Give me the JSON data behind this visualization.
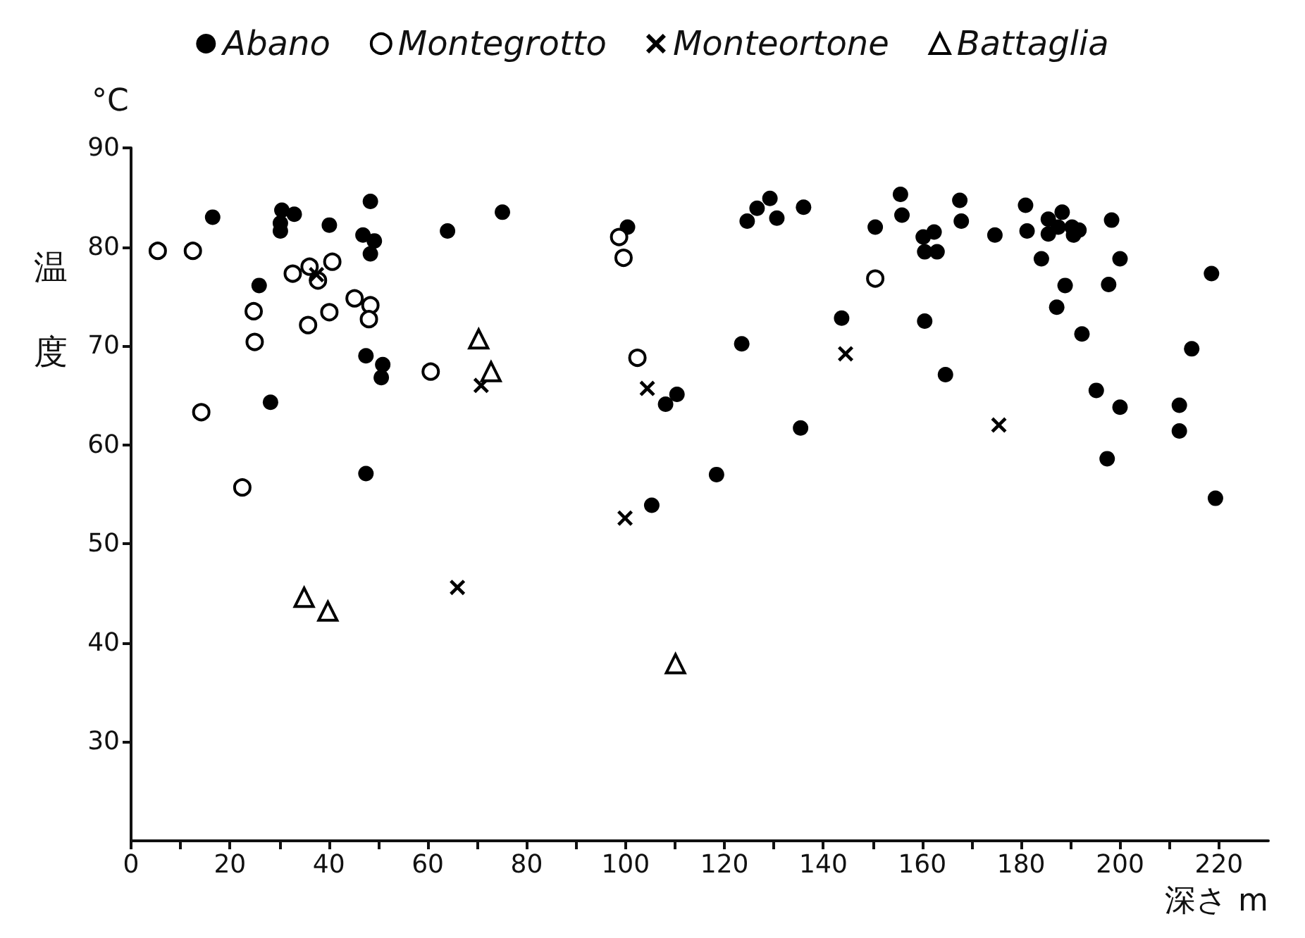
{
  "chart_data": {
    "type": "scatter",
    "xlabel": "深さ m",
    "ylabel": "温度",
    "annotations": [
      "°C"
    ],
    "xlim": [
      0,
      230
    ],
    "ylim": [
      20,
      90
    ],
    "xticks": [
      0,
      {
        "value": 10,
        "label": null
      },
      20,
      {
        "value": 30,
        "label": null
      },
      40,
      {
        "value": 50,
        "label": null
      },
      60,
      {
        "value": 70,
        "label": null
      },
      80,
      {
        "value": 90,
        "label": null
      },
      100,
      {
        "value": 110,
        "label": null
      },
      120,
      {
        "value": 130,
        "label": null
      },
      140,
      {
        "value": 150,
        "label": null
      },
      160,
      {
        "value": 170,
        "label": null
      },
      180,
      {
        "value": 190,
        "label": null
      },
      200,
      {
        "value": 210,
        "label": null
      },
      220
    ],
    "yticks": [
      30,
      40,
      50,
      60,
      70,
      80,
      90
    ],
    "grid": false,
    "legend": "top",
    "series": [
      {
        "name": "Abano",
        "color": "#000000",
        "marker": "circle",
        "x": [
          16.5,
          30.5,
          33,
          30.2,
          30.2,
          40.1,
          48.4,
          46.9,
          49.2,
          48.4,
          25.9,
          64,
          75.1,
          47.5,
          50.9,
          50.6,
          28.2,
          47.5,
          100.4,
          124.6,
          126.6,
          129.2,
          130.6,
          136,
          155.6,
          155.9,
          150.5,
          143.7,
          123.5,
          110.4,
          108.1,
          135.4,
          118.4,
          105.3,
          167.6,
          167.9,
          160.2,
          162.4,
          160.5,
          163,
          174.7,
          180.9,
          181.2,
          185.5,
          188.3,
          185.5,
          190.3,
          191.7,
          190.6,
          187.5,
          198.3,
          184.1,
          200,
          188.9,
          197.7,
          187.2,
          218.5,
          160.5,
          192.3,
          214.5,
          164.7,
          195.2,
          200,
          212,
          212,
          197.4,
          219.3
        ],
        "values": [
          83,
          83.7,
          83.3,
          82.4,
          81.6,
          82.2,
          84.6,
          81.2,
          80.6,
          79.3,
          76.1,
          81.6,
          83.5,
          69,
          68.1,
          66.8,
          64.3,
          57.1,
          82,
          82.6,
          83.9,
          84.9,
          82.9,
          84,
          85.3,
          83.2,
          82,
          72.8,
          70.2,
          65.1,
          64.1,
          61.7,
          57,
          53.9,
          84.7,
          82.6,
          81,
          81.5,
          79.5,
          79.5,
          81.2,
          84.2,
          81.6,
          82.8,
          83.5,
          81.3,
          82,
          81.7,
          81.2,
          82,
          82.7,
          78.8,
          78.8,
          76.1,
          76.2,
          73.9,
          77.3,
          72.5,
          71.2,
          69.7,
          67.1,
          65.5,
          63.8,
          64,
          61.4,
          58.6,
          54.6
        ]
      },
      {
        "name": "Montegrotto",
        "color": "#ffffff",
        "marker": "circle",
        "x": [
          5.4,
          12.5,
          32.7,
          36.1,
          37.8,
          40.7,
          45.2,
          48.4,
          48.1,
          40.1,
          35.8,
          24.8,
          25,
          60.6,
          14.2,
          22.5,
          98.7,
          99.6,
          102.4,
          150.5
        ],
        "values": [
          79.6,
          79.6,
          77.3,
          78,
          76.6,
          78.5,
          74.8,
          74.1,
          72.7,
          73.4,
          72.1,
          73.5,
          70.4,
          67.4,
          63.3,
          55.7,
          81,
          78.9,
          68.8,
          76.8
        ]
      },
      {
        "name": "Monteortone",
        "color": "#000000",
        "marker": "cross",
        "x": [
          37.5,
          70.8,
          66,
          104.4,
          99.9,
          144.5,
          175.5
        ],
        "values": [
          77.2,
          66,
          45.6,
          65.7,
          52.6,
          69.2,
          62
        ]
      },
      {
        "name": "Battaglia",
        "color": "#ffffff",
        "marker": "triangle",
        "x": [
          70.3,
          72.8,
          35,
          39.8,
          110.1
        ],
        "values": [
          70.7,
          67.4,
          44.6,
          43.2,
          37.9
        ]
      }
    ]
  }
}
